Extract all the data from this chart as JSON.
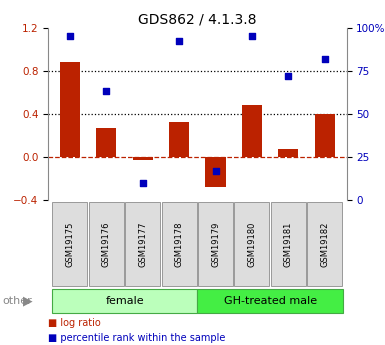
{
  "title": "GDS862 / 4.1.3.8",
  "samples": [
    "GSM19175",
    "GSM19176",
    "GSM19177",
    "GSM19178",
    "GSM19179",
    "GSM19180",
    "GSM19181",
    "GSM19182"
  ],
  "log_ratio": [
    0.88,
    0.27,
    -0.03,
    0.32,
    -0.28,
    0.48,
    0.07,
    0.4
  ],
  "percentile_rank": [
    95,
    63,
    10,
    92,
    17,
    95,
    72,
    82
  ],
  "groups": [
    {
      "label": "female",
      "start": 0,
      "end": 4,
      "color": "#bbffbb"
    },
    {
      "label": "GH-treated male",
      "start": 4,
      "end": 8,
      "color": "#44ee44"
    }
  ],
  "left_ylim": [
    -0.4,
    1.2
  ],
  "right_ylim": [
    0,
    100
  ],
  "left_yticks": [
    -0.4,
    0.0,
    0.4,
    0.8,
    1.2
  ],
  "right_yticks": [
    0,
    25,
    50,
    75,
    100
  ],
  "right_yticklabels": [
    "0",
    "25",
    "50",
    "75",
    "100%"
  ],
  "hlines_dotted": [
    0.4,
    0.8
  ],
  "hline_dashed_val": 0.0,
  "bar_color": "#bb2200",
  "dot_color": "#0000bb",
  "bar_width": 0.55,
  "dot_size": 22,
  "legend_items": [
    "log ratio",
    "percentile rank within the sample"
  ],
  "legend_colors": [
    "#bb2200",
    "#0000bb"
  ],
  "other_label": "other",
  "figsize": [
    3.85,
    3.45
  ],
  "dpi": 100
}
